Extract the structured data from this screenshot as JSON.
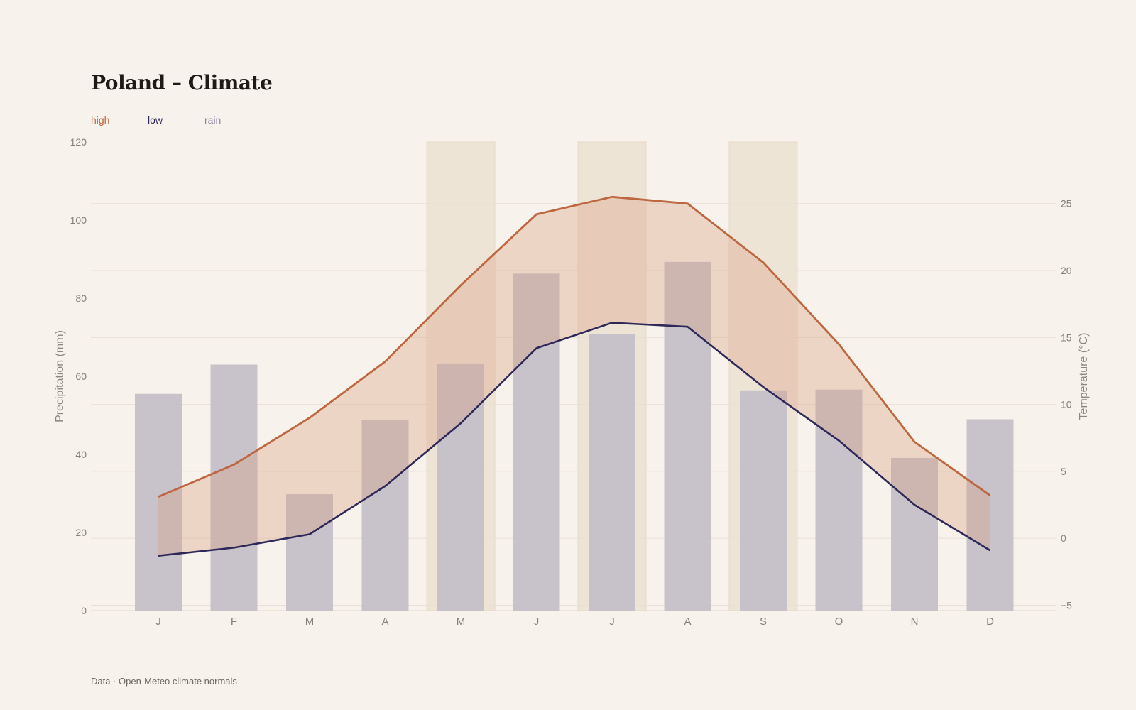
{
  "title": "Poland – Climate",
  "legend": [
    {
      "label": "high",
      "color": "#bd6741"
    },
    {
      "label": "low",
      "color": "#2d2858"
    },
    {
      "label": "rain",
      "color": "#8b87a3"
    }
  ],
  "footer": "Data · Open-Meteo climate normals",
  "chart_data": {
    "type": "bar",
    "categories": [
      "J",
      "F",
      "M",
      "A",
      "M",
      "J",
      "J",
      "A",
      "S",
      "O",
      "N",
      "D"
    ],
    "series": [
      {
        "name": "rain",
        "type": "bar",
        "axis": "left",
        "color": "#c3bfc8",
        "values": [
          55.5,
          63,
          29.8,
          48.8,
          63.3,
          86.3,
          70.8,
          89.3,
          56.4,
          56.6,
          39.1,
          49
        ]
      },
      {
        "name": "high",
        "type": "line",
        "axis": "right",
        "color": "#bd6741",
        "values": [
          3.1,
          5.5,
          9,
          13.2,
          18.9,
          24.2,
          25.5,
          25,
          20.6,
          14.5,
          7.2,
          3.2
        ]
      },
      {
        "name": "low",
        "type": "line",
        "axis": "right",
        "color": "#2d2858",
        "values": [
          -1.3,
          -0.7,
          0.3,
          3.9,
          8.6,
          14.2,
          16.1,
          15.8,
          11.3,
          7.3,
          2.5,
          -0.9
        ]
      }
    ],
    "highlight_months": [
      4,
      6,
      8
    ],
    "ylabel": "Precipitation (mm)",
    "ylim": [
      0,
      120
    ],
    "yticks": [
      "0",
      "20",
      "40",
      "60",
      "80",
      "100",
      "120"
    ],
    "y2label": "Temperature (°C)",
    "y2lim": [
      -5.4,
      29.6
    ],
    "y2ticks": [
      "−5",
      "0",
      "5",
      "10",
      "15",
      "20",
      "25"
    ],
    "grid": true,
    "legend_position": "top-left"
  }
}
